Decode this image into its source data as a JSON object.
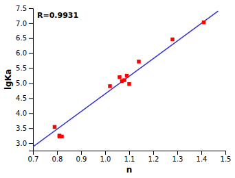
{
  "chart_data": {
    "type": "scatter",
    "xlabel": "n",
    "ylabel": "lgKa",
    "annotation": "R=0.9931",
    "xlim": [
      0.7,
      1.5
    ],
    "ylim": [
      2.75,
      7.5
    ],
    "xticks": [
      0.7,
      0.8,
      0.9,
      {
        "value": 1.0,
        "label": "1.0"
      },
      1.1,
      1.2,
      1.3,
      1.4,
      1.5
    ],
    "yticks": [
      {
        "value": 3.0,
        "label": "3.0"
      },
      3.5,
      {
        "value": 4.0,
        "label": "4.0"
      },
      4.5,
      {
        "value": 5.0,
        "label": "5.0"
      },
      5.5,
      {
        "value": 6.0,
        "label": "6.0"
      },
      6.5,
      {
        "value": 7.0,
        "label": "7.0"
      },
      7.5
    ],
    "grid": false,
    "series": [
      {
        "type": "line",
        "color": "#3333CC",
        "x": [
          0.7,
          1.47
        ],
        "values": [
          2.876,
          7.4036
        ]
      },
      {
        "type": "scatter",
        "color": "#FF0000",
        "marker": "square",
        "x": [
          0.79,
          0.81,
          0.81,
          0.82,
          1.02,
          1.06,
          1.07,
          1.08,
          1.09,
          1.1,
          1.14,
          1.28,
          1.41
        ],
        "values": [
          3.54,
          3.22,
          3.25,
          3.22,
          4.9,
          5.2,
          5.07,
          5.1,
          5.25,
          4.97,
          5.72,
          6.46,
          7.03
        ]
      }
    ]
  }
}
